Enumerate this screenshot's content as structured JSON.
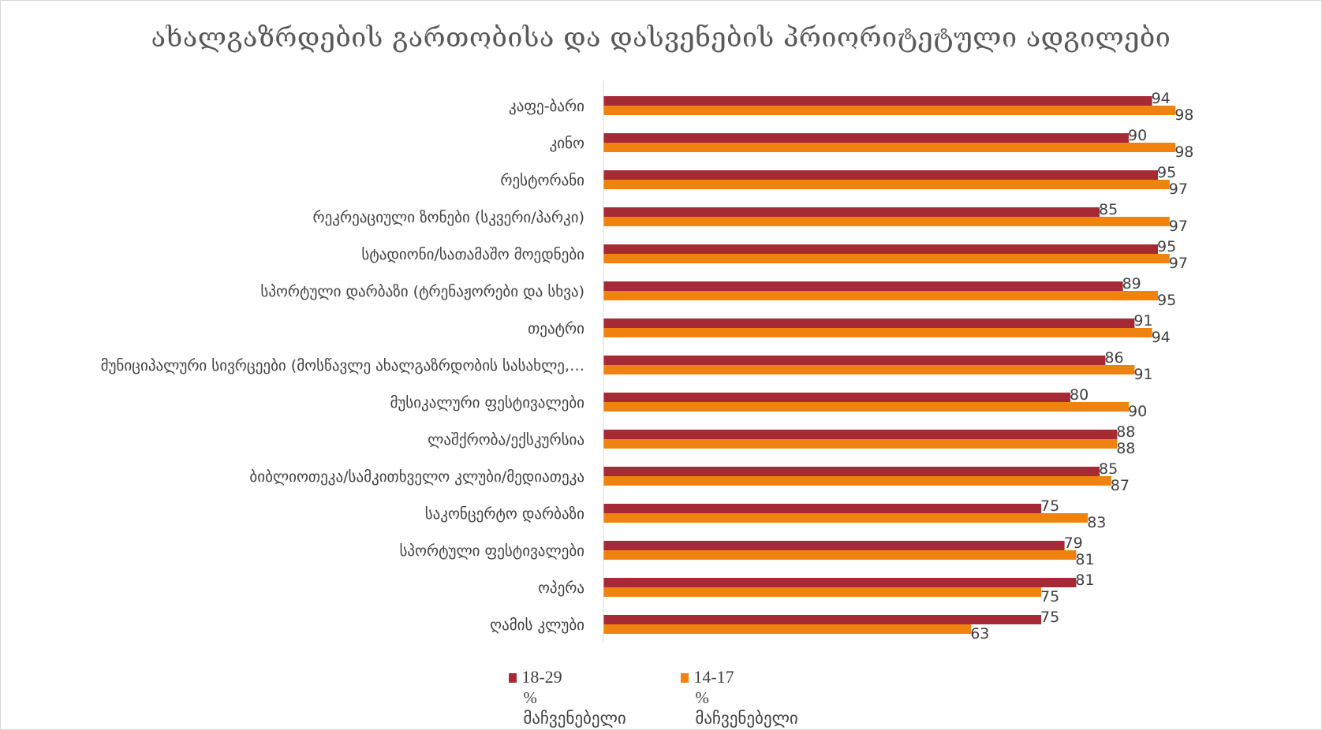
{
  "chart_data": {
    "type": "bar",
    "orientation": "horizontal",
    "title": "ახალგაზრდების გართობისა და დასვენების პრიორიტეტული ადგილები",
    "xlabel": "",
    "ylabel": "",
    "xlim": [
      0,
      100
    ],
    "grid": false,
    "legend_position": "bottom",
    "categories": [
      "კაფე-ბარი",
      "კინო",
      "რესტორანი",
      "რეკრეაციული ზონები (სკვერი/პარკი)",
      "სტადიონი/სათამაშო მოედნები",
      "სპორტული დარბაზი (ტრენაჟორები და სხვა)",
      "თეატრი",
      "მუნიციპალური სივრცეები (მოსწავლე ახალგაზრდობის სასახლე,…",
      "მუსიკალური ფესტივალები",
      "ლაშქრობა/ექსკურსია",
      "ბიბლიოთეკა/სამკითხველო კლუბი/მედიათეკა",
      "საკონცერტო დარბაზი",
      "სპორტული ფესტივალები",
      "ოპერა",
      "ღამის კლუბი"
    ],
    "series": [
      {
        "name": "18-29",
        "subtitle": "% მაჩვენებელი",
        "color": "#a52a36",
        "values": [
          94,
          90,
          95,
          85,
          95,
          89,
          91,
          86,
          80,
          88,
          85,
          75,
          79,
          81,
          75
        ]
      },
      {
        "name": "14-17",
        "subtitle": "% მაჩვენებელი",
        "color": "#f0820f",
        "values": [
          98,
          98,
          97,
          97,
          97,
          95,
          94,
          91,
          90,
          88,
          87,
          83,
          81,
          75,
          63
        ]
      }
    ]
  }
}
